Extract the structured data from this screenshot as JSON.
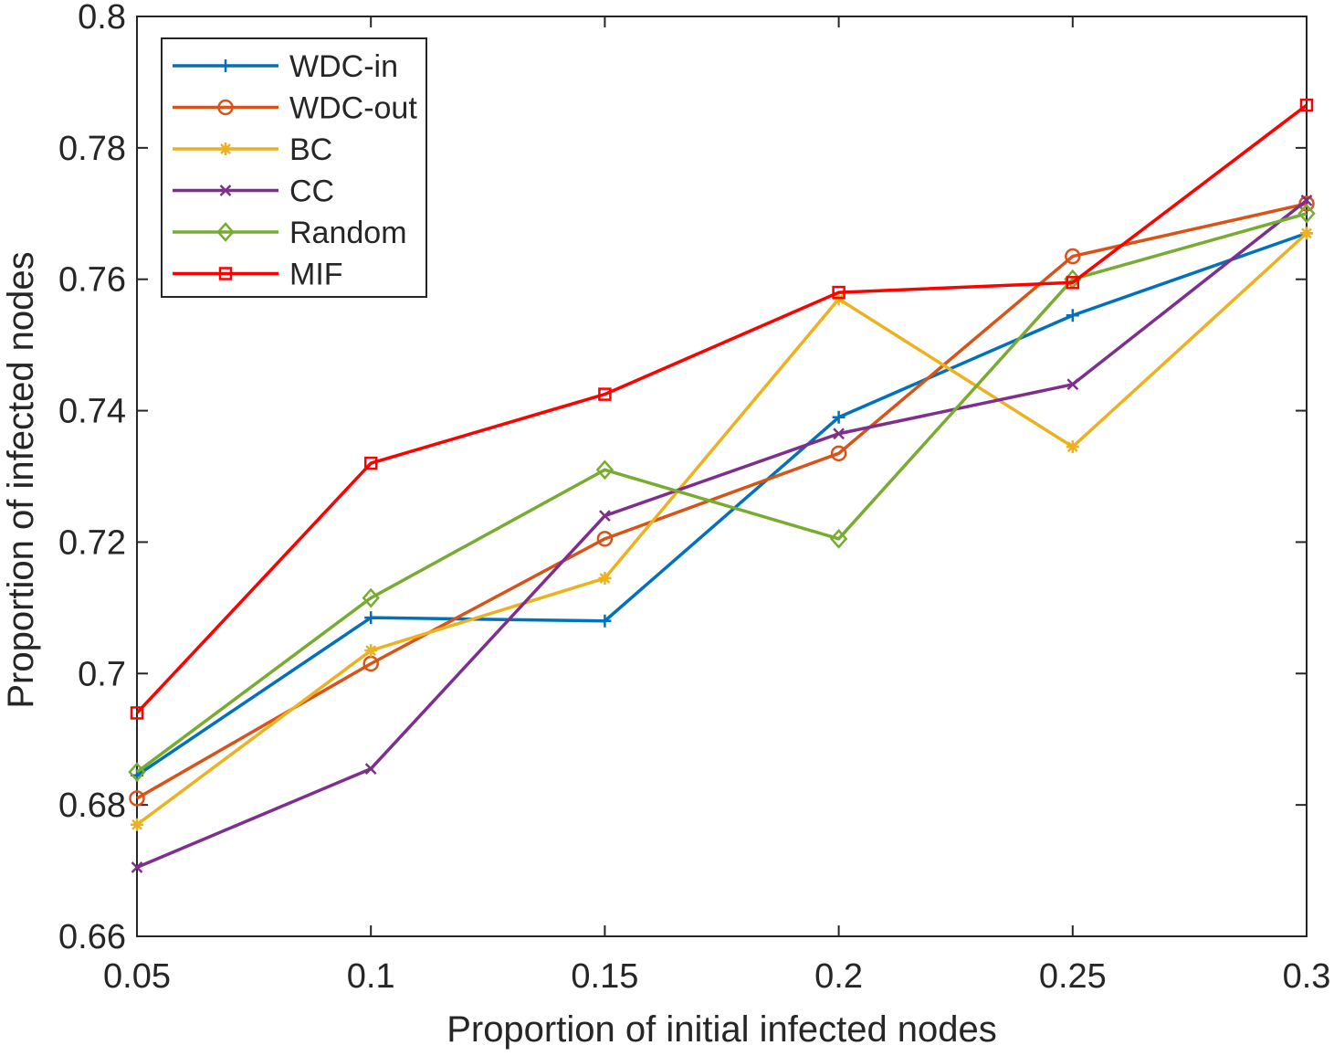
{
  "chart_data": {
    "type": "line",
    "title": "",
    "xlabel": "Proportion of initial infected nodes",
    "ylabel": "Proportion of infected nodes",
    "x": [
      0.05,
      0.1,
      0.15,
      0.2,
      0.25,
      0.3
    ],
    "xticks": [
      "0.05",
      "0.1",
      "0.15",
      "0.2",
      "0.25",
      "0.3"
    ],
    "yticks": [
      "0.66",
      "0.68",
      "0.7",
      "0.72",
      "0.74",
      "0.76",
      "0.78",
      "0.8"
    ],
    "xlim": [
      0.05,
      0.3
    ],
    "ylim": [
      0.66,
      0.8
    ],
    "grid": false,
    "legend_position": "top-left",
    "series": [
      {
        "name": "WDC-in",
        "color": "#0072BD",
        "marker": "plus",
        "values": [
          0.6845,
          0.7085,
          0.708,
          0.739,
          0.7545,
          0.767
        ]
      },
      {
        "name": "WDC-out",
        "color": "#D95319",
        "marker": "circle",
        "values": [
          0.681,
          0.7015,
          0.7205,
          0.7335,
          0.7635,
          0.7715
        ]
      },
      {
        "name": "BC",
        "color": "#EDB120",
        "marker": "asterisk",
        "values": [
          0.677,
          0.7035,
          0.7145,
          0.757,
          0.7345,
          0.767
        ]
      },
      {
        "name": "CC",
        "color": "#7E2F8E",
        "marker": "x",
        "values": [
          0.6705,
          0.6855,
          0.724,
          0.7365,
          0.744,
          0.772
        ]
      },
      {
        "name": "Random",
        "color": "#77AC30",
        "marker": "diamond",
        "values": [
          0.685,
          0.7115,
          0.731,
          0.7205,
          0.76,
          0.77
        ]
      },
      {
        "name": "MIF",
        "color": "#FF0000",
        "marker": "square",
        "values": [
          0.694,
          0.732,
          0.7425,
          0.758,
          0.7595,
          0.7865
        ]
      }
    ]
  }
}
